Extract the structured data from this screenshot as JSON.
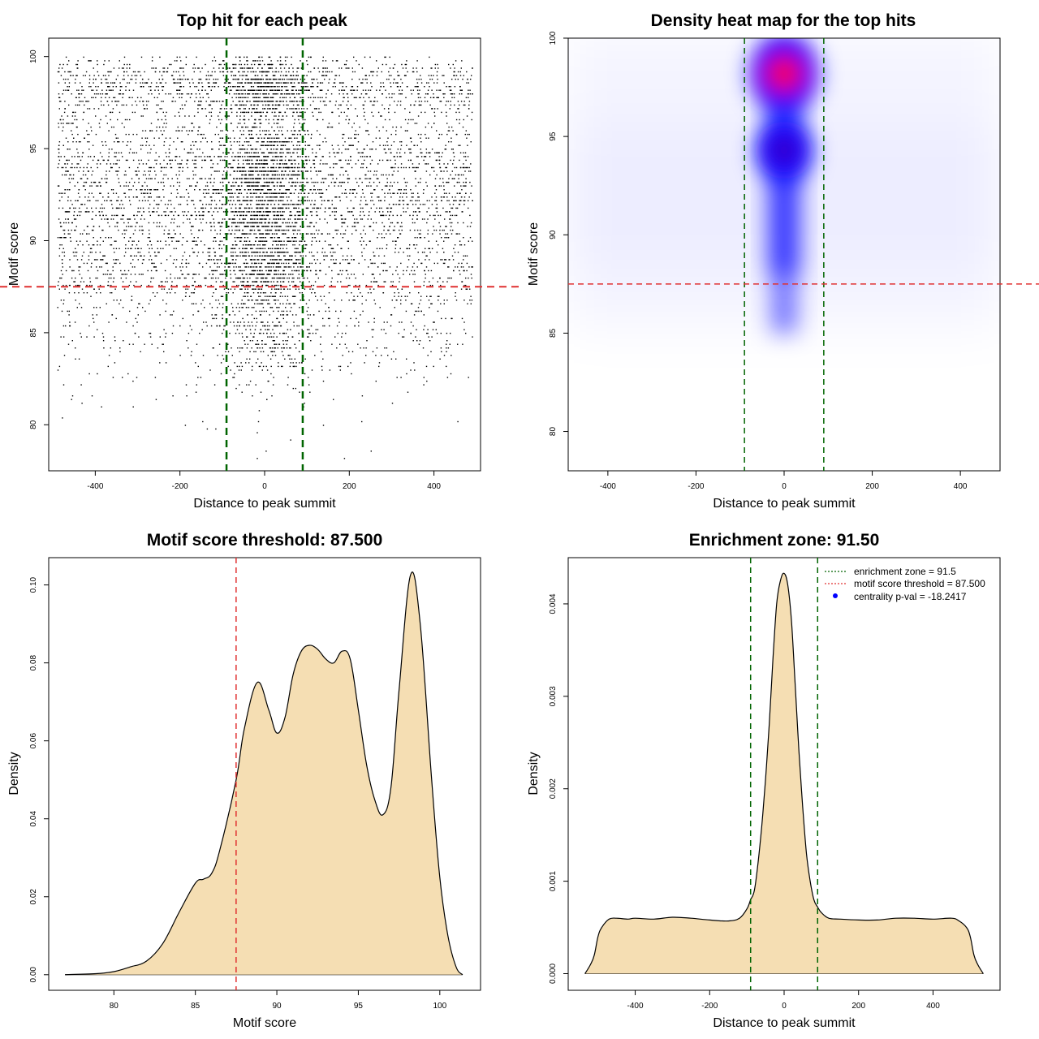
{
  "colors": {
    "zone_line": "#006400",
    "threshold_line": "#e03030",
    "density_fill": "#f5deb3",
    "heat_low": "#ffffff",
    "heat_mid": "#0000ff",
    "heat_high": "#ff0000",
    "points": "#000000",
    "pval_marker": "#0000ff"
  },
  "chart_data": [
    {
      "type": "scatter",
      "title": "Top hit for each peak",
      "xlabel": "Distance to peak summit",
      "ylabel": "Motif score",
      "xlim": [
        -510,
        510
      ],
      "ylim": [
        77.5,
        101
      ],
      "xticks": [
        -400,
        -200,
        0,
        200,
        400
      ],
      "yticks": [
        80,
        85,
        90,
        95,
        100
      ],
      "grid": false,
      "x_range_of_points": [
        -490,
        490
      ],
      "y_range_of_points": [
        78,
        100
      ],
      "dense_band_x": [
        -90,
        90
      ],
      "vlines": [
        -90,
        90
      ],
      "hline": 87.5
    },
    {
      "type": "heatmap",
      "title": "Density heat map for the top hits",
      "xlabel": "Distance to peak summit",
      "ylabel": "Motif score",
      "xlim": [
        -490,
        490
      ],
      "ylim": [
        78,
        100
      ],
      "xticks": [
        -400,
        -200,
        0,
        200,
        400
      ],
      "yticks": [
        80,
        85,
        90,
        95,
        100
      ],
      "grid": false,
      "hotspots": [
        {
          "x": 0,
          "y": 98.2,
          "level": "high"
        },
        {
          "x": 0,
          "y": 94.3,
          "level": "mid"
        }
      ],
      "vlines": [
        -90,
        90
      ],
      "hline": 87.5
    },
    {
      "type": "area",
      "title": "Motif score threshold: 87.500",
      "xlabel": "Motif score",
      "ylabel": "Density",
      "xlim": [
        76,
        102.5
      ],
      "ylim": [
        -0.004,
        0.107
      ],
      "xticks": [
        80,
        85,
        90,
        95,
        100
      ],
      "yticks": [
        0.0,
        0.02,
        0.04,
        0.06,
        0.08,
        0.1
      ],
      "ytick_labels": [
        "0.00",
        "0.02",
        "0.04",
        "0.06",
        "0.08",
        "0.10"
      ],
      "grid": false,
      "x": [
        77,
        79,
        80,
        81,
        82,
        83,
        84,
        85,
        85.5,
        86,
        86.5,
        87.5,
        88,
        88.8,
        89.5,
        90,
        90.5,
        91,
        91.5,
        92,
        92.5,
        93,
        93.5,
        94,
        94.5,
        95,
        95.5,
        96,
        96.5,
        97,
        97.5,
        98.2,
        98.8,
        99.5,
        100,
        100.5,
        101,
        101.4
      ],
      "y": [
        0.0,
        0.0003,
        0.0008,
        0.002,
        0.0035,
        0.008,
        0.016,
        0.0235,
        0.0245,
        0.026,
        0.032,
        0.05,
        0.063,
        0.075,
        0.068,
        0.062,
        0.066,
        0.077,
        0.083,
        0.0845,
        0.0835,
        0.081,
        0.08,
        0.083,
        0.081,
        0.068,
        0.054,
        0.045,
        0.041,
        0.048,
        0.073,
        0.1025,
        0.09,
        0.05,
        0.025,
        0.01,
        0.002,
        0.0
      ],
      "vline": 87.5
    },
    {
      "type": "area",
      "title": "Enrichment zone: 91.50",
      "xlabel": "Distance to peak summit",
      "ylabel": "Density",
      "xlim": [
        -580,
        580
      ],
      "ylim": [
        -0.00018,
        0.0045
      ],
      "xticks": [
        -400,
        -200,
        0,
        200,
        400
      ],
      "yticks": [
        0.0,
        0.001,
        0.002,
        0.003,
        0.004
      ],
      "ytick_labels": [
        "0.000",
        "0.001",
        "0.002",
        "0.003",
        "0.004"
      ],
      "grid": false,
      "x": [
        -535,
        -520,
        -510,
        -500,
        -490,
        -470,
        -450,
        -420,
        -400,
        -350,
        -300,
        -250,
        -200,
        -150,
        -120,
        -100,
        -90,
        -80,
        -70,
        -60,
        -50,
        -40,
        -30,
        -20,
        -10,
        0,
        10,
        20,
        30,
        40,
        50,
        60,
        70,
        80,
        90,
        100,
        120,
        150,
        200,
        250,
        300,
        350,
        400,
        450,
        470,
        490,
        500,
        510,
        520,
        535
      ],
      "y": [
        0.0,
        0.0001,
        0.0002,
        0.0004,
        0.0005,
        0.00059,
        0.0006,
        0.00059,
        0.0006,
        0.00059,
        0.00061,
        0.0006,
        0.00058,
        0.00057,
        0.0006,
        0.0007,
        0.0008,
        0.0009,
        0.0012,
        0.0016,
        0.0021,
        0.0027,
        0.0034,
        0.004,
        0.00425,
        0.00433,
        0.0042,
        0.0038,
        0.0031,
        0.0024,
        0.0018,
        0.0013,
        0.001,
        0.0008,
        0.00072,
        0.00066,
        0.0006,
        0.00059,
        0.00058,
        0.00058,
        0.0006,
        0.0006,
        0.00059,
        0.0006,
        0.00057,
        0.0005,
        0.0004,
        0.0002,
        0.0001,
        0.0
      ],
      "vlines": [
        -90,
        90
      ],
      "legend": {
        "position": "top-right",
        "entries": [
          {
            "label": "enrichment zone = 91.5"
          },
          {
            "label": "motif score threshold = 87.500"
          },
          {
            "label": "centrality p-val = -18.2417"
          }
        ]
      }
    }
  ]
}
